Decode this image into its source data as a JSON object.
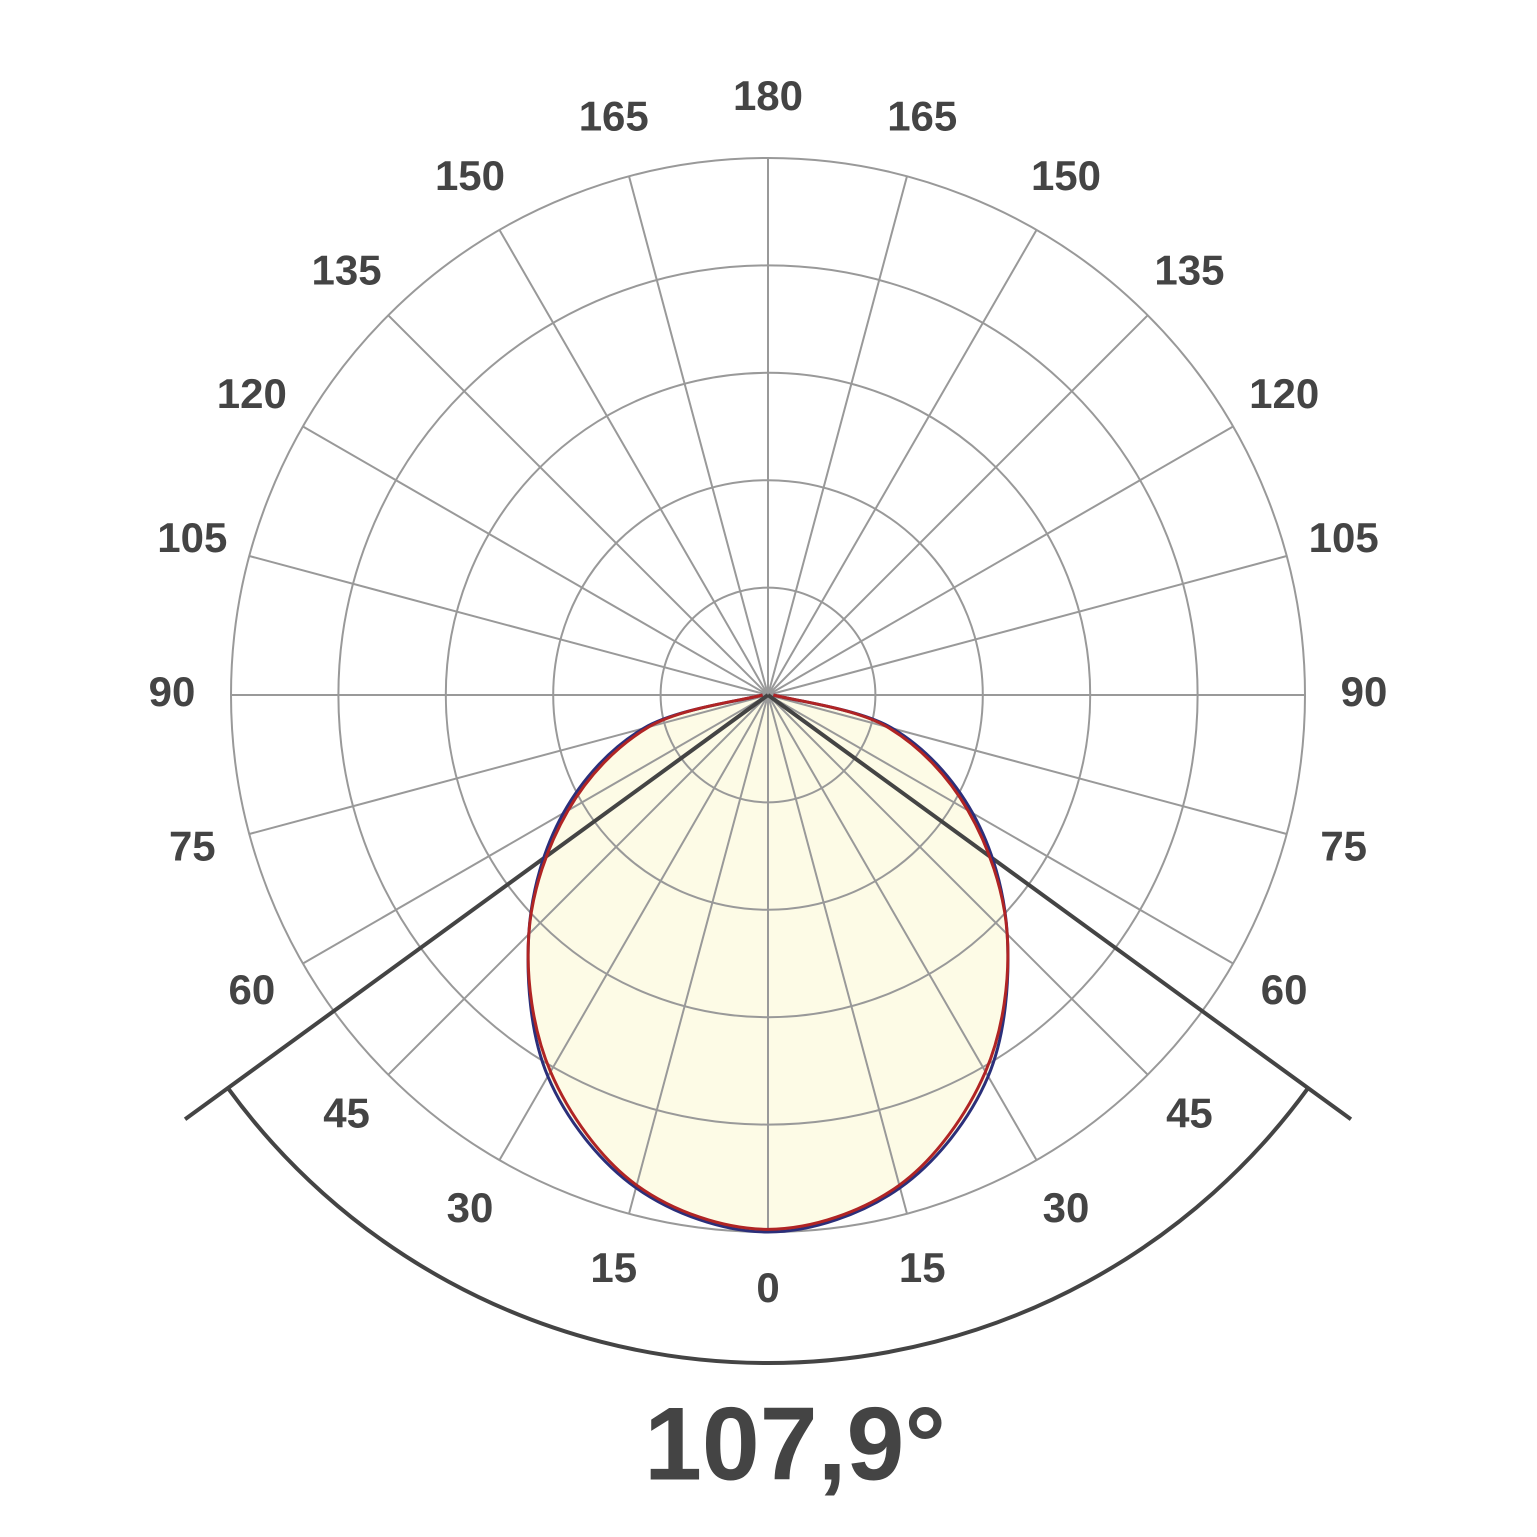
{
  "chart_data": {
    "type": "polar",
    "title": {
      "value": 107.9,
      "label": "107,9°"
    },
    "angle_ticks": [
      0,
      15,
      30,
      45,
      60,
      75,
      90,
      105,
      120,
      135,
      150,
      165,
      180
    ],
    "rlim": [
      0,
      100
    ],
    "rgrid": [
      20,
      40,
      60,
      80,
      100
    ],
    "grid_color": "#999999",
    "fill_color": "#fdfbe6",
    "beam_color": "#444444",
    "x": [
      -90,
      -75,
      -60,
      -45,
      -30,
      -15,
      0,
      15,
      30,
      45,
      60,
      75,
      90
    ],
    "series": [
      {
        "color": "#2b2f7a",
        "values": [
          1,
          24,
          44,
          63,
          82,
          95,
          100,
          95,
          82,
          63,
          44,
          24,
          1
        ]
      },
      {
        "color": "#b02424",
        "values": [
          1,
          23,
          43,
          63,
          81,
          94.5,
          99.5,
          94.5,
          81,
          63,
          43,
          23,
          1
        ]
      }
    ]
  }
}
